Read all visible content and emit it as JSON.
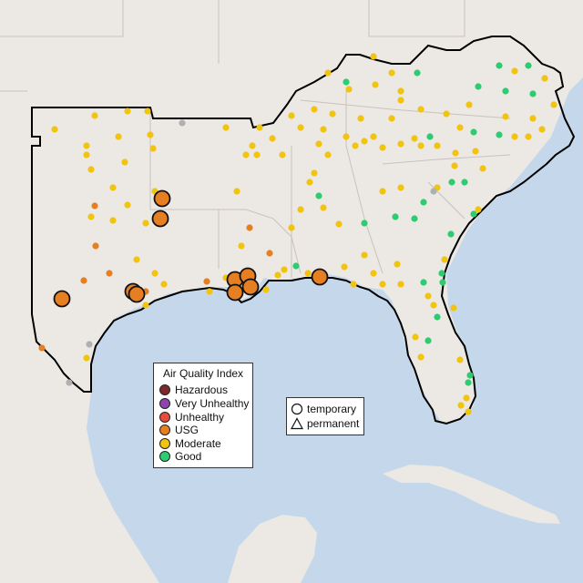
{
  "aqi_legend": {
    "title": "Air Quality Index",
    "items": [
      {
        "label": "Hazardous",
        "color": "#7e2a2a"
      },
      {
        "label": "Very Unhealthy",
        "color": "#8e44ad"
      },
      {
        "label": "Unhealthy",
        "color": "#e74c3c"
      },
      {
        "label": "USG",
        "color": "#e67e22"
      },
      {
        "label": "Moderate",
        "color": "#f1c40f"
      },
      {
        "label": "Good",
        "color": "#2ecc71"
      }
    ]
  },
  "shape_legend": {
    "items": [
      {
        "label": "temporary",
        "icon": "circle-icon"
      },
      {
        "label": "permanent",
        "icon": "triangle-icon"
      }
    ]
  },
  "colors": {
    "water": "#c5d7ea",
    "land": "#ece8e4",
    "region": "#e9e2dd",
    "outline": "#000000",
    "unknown": "#b0b0b0"
  }
}
